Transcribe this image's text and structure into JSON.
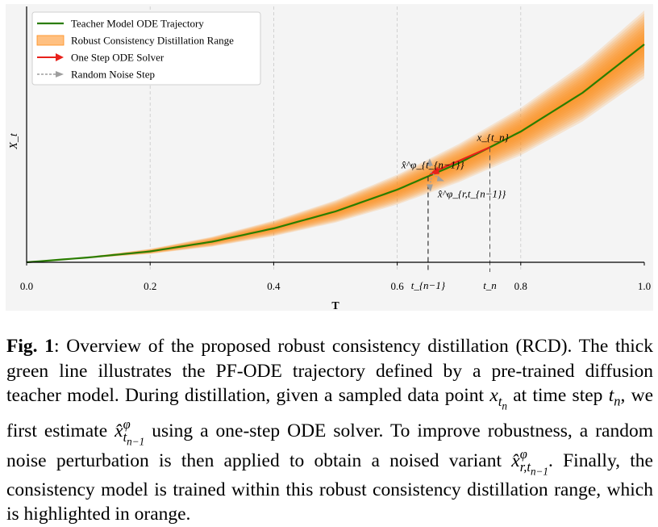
{
  "chart_data": {
    "type": "line",
    "title": "",
    "xlabel": "T",
    "ylabel": "X_t",
    "xlim": [
      0.0,
      1.0
    ],
    "ylim": [
      0,
      1
    ],
    "xticks": [
      "0.0",
      "0.2",
      "0.4",
      "0.6",
      "0.8",
      "1.0"
    ],
    "grid": "vertical dashed",
    "legend_position": "top-left",
    "legend": [
      {
        "label": "Teacher Model ODE Trajectory",
        "kind": "line",
        "color": "#2a7d00"
      },
      {
        "label": "Robust Consistency Distillation Range",
        "kind": "band",
        "color": "#ff8c1a"
      },
      {
        "label": "One Step ODE Solver",
        "kind": "arrow",
        "color": "#e8211b"
      },
      {
        "label": "Random Noise Step",
        "kind": "dashed-arrow",
        "color": "#9e9e9e"
      }
    ],
    "series": [
      {
        "name": "Teacher Model ODE Trajectory",
        "x": [
          0.0,
          0.1,
          0.2,
          0.3,
          0.4,
          0.5,
          0.6,
          0.7,
          0.8,
          0.9,
          1.0
        ],
        "y": [
          0.0,
          0.02,
          0.045,
          0.085,
          0.14,
          0.21,
          0.3,
          0.41,
          0.54,
          0.7,
          0.9
        ]
      }
    ],
    "band_halfwidth_at_x1": 0.14,
    "marked_steps": {
      "t_n": 0.75,
      "t_n_minus_1": 0.65,
      "t_n_label": "t_n",
      "t_n_minus_1_label": "t_{n−1}",
      "point_label": "x_{t_n}",
      "estimate_label": "x̂^φ_{t_{n−1}}",
      "noised_label": "x̂^φ_{r,t_{n−1}}"
    }
  },
  "caption": {
    "fig_label": "Fig. 1",
    "text_1": ": Overview of the proposed robust consistency distillation (RCD). The thick green line illustrates the PF-ODE trajectory defined by a pre-trained diffusion teacher model. During distillation, given a sampled data point ",
    "m1": "x",
    "m1_sub": "t",
    "m1_subsub": "n",
    "text_2": " at time step ",
    "m2": "t",
    "m2_sub": "n",
    "text_3": ", we first estimate ",
    "m3": "x̂",
    "m3_sup": "φ",
    "m3_sub": "t",
    "m3_subsub": "n−1",
    "text_4": " using a one-step ODE solver. To improve robustness, a random noise perturbation is then applied to obtain a noised variant ",
    "m4": "x̂",
    "m4_sup": "φ",
    "m4_sub": "r,t",
    "m4_subsub": "n−1",
    "text_5": ". Finally, the consistency model is trained within this robust consistency distillation range, which is highlighted in orange."
  }
}
